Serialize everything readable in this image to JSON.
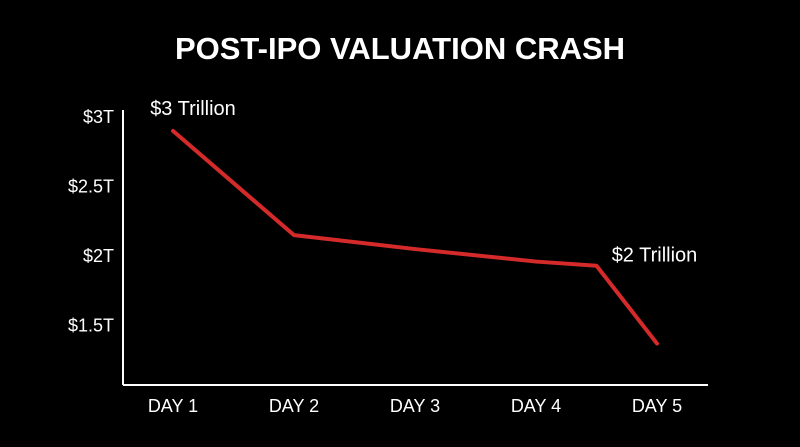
{
  "colors": {
    "background": "#000000",
    "text": "#ffffff",
    "axis": "#ffffff",
    "line": "#d42a2a"
  },
  "chart_data": {
    "type": "line",
    "title": "POST-IPO VALUATION CRASH",
    "xlabel": "",
    "ylabel": "",
    "categories": [
      "DAY 1",
      "DAY 2",
      "DAY 3",
      "DAY 4",
      "DAY 5"
    ],
    "series": [
      {
        "x": [
          "DAY 1",
          "DAY 2",
          "DAY 3",
          "DAY 4",
          "DAY 4.5",
          "DAY 5"
        ],
        "values": [
          2.9,
          2.15,
          2.05,
          1.96,
          1.93,
          1.37
        ]
      }
    ],
    "y_ticks": [
      {
        "value": 3.0,
        "label": "$3T"
      },
      {
        "value": 2.5,
        "label": "$2.5T"
      },
      {
        "value": 2.0,
        "label": "$2T"
      },
      {
        "value": 1.5,
        "label": "$1.5T"
      }
    ],
    "ylim": [
      1.0,
      3.0
    ],
    "grid": false,
    "legend": "none",
    "annotations": [
      {
        "text": "$3 Trillion",
        "point_index": 0
      },
      {
        "text": "$2 Trillion",
        "point_index": 4
      }
    ]
  }
}
